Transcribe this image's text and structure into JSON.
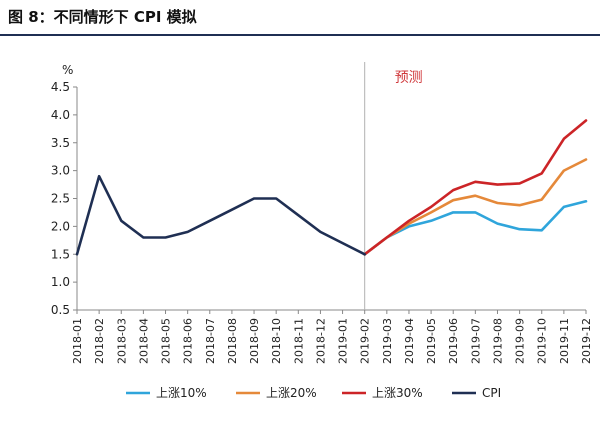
{
  "figure_title": "图 8：不同情形下 CPI 模拟",
  "chart_data": {
    "type": "line",
    "title": "图 8：不同情形下 CPI 模拟",
    "xlabel": "",
    "ylabel": "%",
    "ylim": [
      0.5,
      4.5
    ],
    "yticks": [
      "0.5",
      "1.0",
      "1.5",
      "2.0",
      "2.5",
      "3.0",
      "3.5",
      "4.0",
      "4.5"
    ],
    "grid": false,
    "legend_position": "bottom",
    "x": [
      "2018-01",
      "2018-02",
      "2018-03",
      "2018-04",
      "2018-05",
      "2018-06",
      "2018-07",
      "2018-08",
      "2018-09",
      "2018-10",
      "2018-11",
      "2018-12",
      "2019-01",
      "2019-02",
      "2019-03",
      "2019-04",
      "2019-05",
      "2019-06",
      "2019-07",
      "2019-08",
      "2019-09",
      "2019-10",
      "2019-11",
      "2019-12"
    ],
    "annotation": {
      "text": "预测",
      "at": "2019-02",
      "color": "#d0383b"
    },
    "series": [
      {
        "name": "上涨10%",
        "color": "#2fa5db",
        "values": [
          null,
          null,
          null,
          null,
          null,
          null,
          null,
          null,
          null,
          null,
          null,
          null,
          null,
          1.5,
          1.8,
          2.0,
          2.1,
          2.25,
          2.25,
          2.05,
          1.95,
          1.93,
          2.35,
          2.45
        ]
      },
      {
        "name": "上涨20%",
        "color": "#e5893a",
        "values": [
          null,
          null,
          null,
          null,
          null,
          null,
          null,
          null,
          null,
          null,
          null,
          null,
          null,
          1.5,
          1.8,
          2.05,
          2.25,
          2.47,
          2.55,
          2.42,
          2.38,
          2.48,
          3.0,
          3.2
        ]
      },
      {
        "name": "上涨30%",
        "color": "#cc2427",
        "values": [
          null,
          null,
          null,
          null,
          null,
          null,
          null,
          null,
          null,
          null,
          null,
          null,
          null,
          1.5,
          1.8,
          2.1,
          2.35,
          2.65,
          2.8,
          2.75,
          2.77,
          2.95,
          3.57,
          3.9
        ]
      },
      {
        "name": "CPI",
        "color": "#1f2f53",
        "values": [
          1.5,
          2.9,
          2.1,
          1.8,
          1.8,
          1.9,
          2.1,
          2.3,
          2.5,
          2.5,
          2.2,
          1.9,
          1.7,
          1.5,
          null,
          null,
          null,
          null,
          null,
          null,
          null,
          null,
          null,
          null
        ]
      }
    ]
  }
}
